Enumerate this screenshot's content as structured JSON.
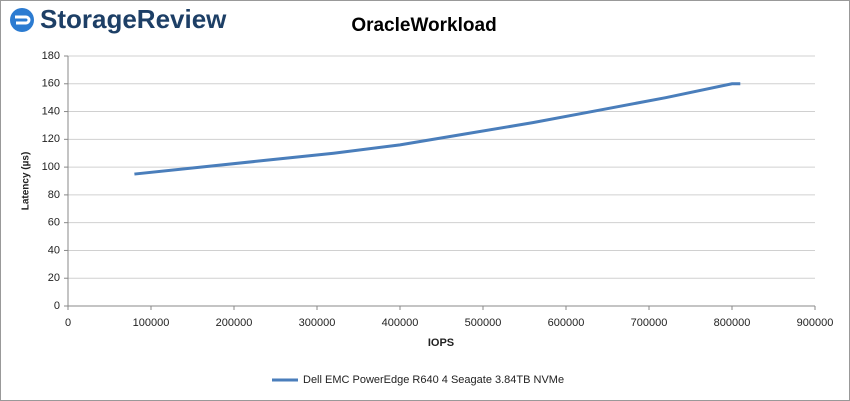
{
  "chart_data": {
    "type": "line",
    "logo_text": "StorageReview",
    "title": "OracleWorkload",
    "x_label": "IOPS",
    "y_label": "Latency (µs)",
    "x": [
      80000,
      160000,
      240000,
      320000,
      400000,
      480000,
      560000,
      640000,
      720000,
      800000,
      810000
    ],
    "series": [
      {
        "name": "Dell EMC PowerEdge R640 4 Seagate 3.84TB NVMe",
        "color": "#4a7ebb",
        "values": [
          95,
          100,
          105,
          110,
          116,
          124,
          132,
          141,
          150,
          160,
          160
        ]
      }
    ],
    "xlim": [
      0,
      900000
    ],
    "xticks": [
      0,
      100000,
      200000,
      300000,
      400000,
      500000,
      600000,
      700000,
      800000,
      900000
    ],
    "ylim": [
      0,
      180
    ],
    "yticks": [
      0,
      20,
      40,
      60,
      80,
      100,
      120,
      140,
      160,
      180
    ],
    "grid": true,
    "legend": "bottom"
  }
}
